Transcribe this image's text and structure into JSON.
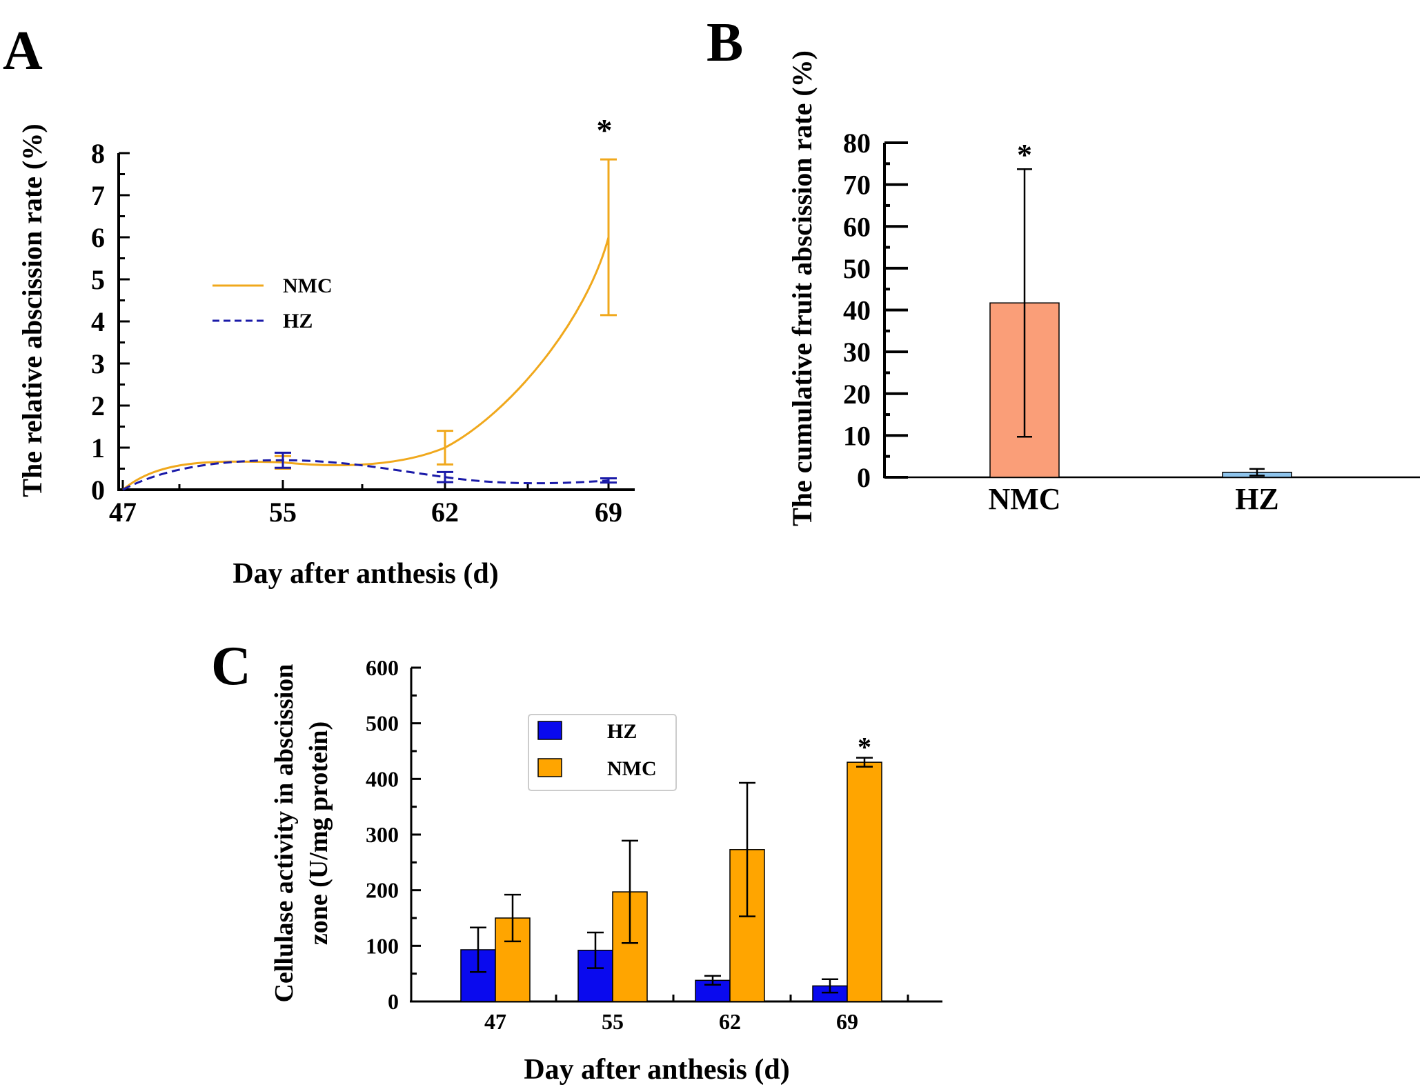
{
  "colors": {
    "nmc_line": "#f0a81c",
    "hz_line": "#1a1aa8",
    "nmc_bar_b": "#fa9e78",
    "hz_bar_b": "#8ec4ec",
    "hz_bar_c": "#0a0aee",
    "nmc_bar_c": "#ffa500",
    "axis": "#000000"
  },
  "chart_data": [
    {
      "panel": "A",
      "type": "line",
      "panel_label": "A",
      "ylabel": "The relative abscission rate (%)",
      "xlabel": "Day after anthesis (d)",
      "x": [
        47,
        55,
        62,
        69
      ],
      "ylim": [
        0,
        8
      ],
      "yticks": [
        "0",
        "1",
        "2",
        "3",
        "4",
        "5",
        "6",
        "7",
        "8"
      ],
      "xticks": [
        "47",
        "55",
        "62",
        "69"
      ],
      "series": [
        {
          "name": "NMC",
          "values": [
            0,
            0.65,
            1.0,
            6.0
          ],
          "err": [
            0,
            0.15,
            0.4,
            1.85
          ],
          "style": "solid"
        },
        {
          "name": "HZ",
          "values": [
            0,
            0.7,
            0.3,
            0.22
          ],
          "err": [
            0,
            0.18,
            0.12,
            0.05
          ],
          "style": "dashed"
        }
      ],
      "significance": "*",
      "legend": [
        "NMC",
        "HZ"
      ]
    },
    {
      "panel": "B",
      "type": "bar",
      "panel_label": "B",
      "ylabel": "The cumulative fruit abscission rate (%)",
      "categories": [
        "NMC",
        "HZ"
      ],
      "values": [
        41.7,
        1.2
      ],
      "err": [
        32.0,
        0.8
      ],
      "ylim": [
        0,
        80
      ],
      "yticks": [
        "0",
        "10",
        "20",
        "30",
        "40",
        "50",
        "60",
        "70",
        "80"
      ],
      "significance": "*"
    },
    {
      "panel": "C",
      "type": "bar",
      "panel_label": "C",
      "ylabel_line1": "Cellulase activity in abscission",
      "ylabel_line2": "zone (U/mg protein)",
      "xlabel": "Day after anthesis (d)",
      "categories": [
        "47",
        "55",
        "62",
        "69"
      ],
      "series": [
        {
          "name": "HZ",
          "values": [
            93,
            92,
            38,
            28
          ],
          "err": [
            40,
            32,
            8,
            12
          ]
        },
        {
          "name": "NMC",
          "values": [
            150,
            197,
            273,
            430
          ],
          "err": [
            42,
            92,
            120,
            8
          ]
        }
      ],
      "ylim": [
        0,
        600
      ],
      "yticks": [
        "0",
        "100",
        "200",
        "300",
        "400",
        "500",
        "600"
      ],
      "significance": "*",
      "legend": [
        "HZ",
        "NMC"
      ]
    }
  ]
}
